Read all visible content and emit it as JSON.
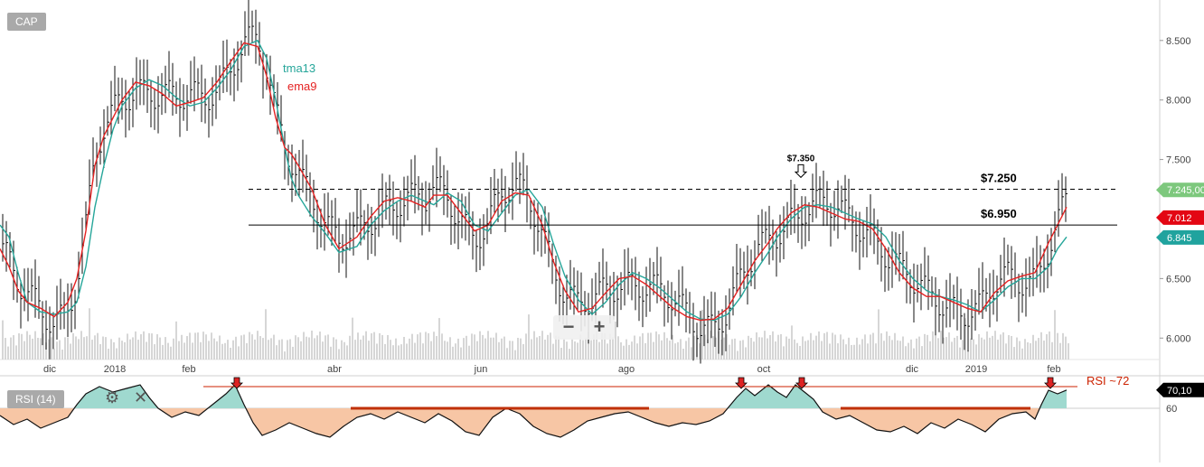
{
  "chart_data": [
    {
      "type": "candlestick",
      "title": "CAP",
      "y_axis": {
        "position": "right",
        "range": [
          5.82,
          8.84
        ],
        "tick_labels": [
          "6.000",
          "6.500",
          "7.000",
          "7.500",
          "8.000",
          "8.500"
        ],
        "tick_values": [
          6.0,
          6.5,
          7.0,
          7.5,
          8.0,
          8.5
        ]
      },
      "x_axis": {
        "tick_labels": [
          "dic",
          "2018",
          "feb",
          "abr",
          "jun",
          "ago",
          "oct",
          "dic",
          "2019",
          "feb"
        ]
      },
      "series": [
        {
          "name": "tma13",
          "color": "#26a69a",
          "points": [
            [
              0,
              6.95
            ],
            [
              10,
              6.85
            ],
            [
              20,
              6.55
            ],
            [
              30,
              6.3
            ],
            [
              45,
              6.22
            ],
            [
              60,
              6.2
            ],
            [
              75,
              6.22
            ],
            [
              85,
              6.3
            ],
            [
              95,
              6.6
            ],
            [
              105,
              7.1
            ],
            [
              115,
              7.45
            ],
            [
              125,
              7.75
            ],
            [
              135,
              7.95
            ],
            [
              150,
              8.1
            ],
            [
              165,
              8.17
            ],
            [
              180,
              8.12
            ],
            [
              195,
              8.02
            ],
            [
              210,
              7.95
            ],
            [
              225,
              7.98
            ],
            [
              240,
              8.1
            ],
            [
              255,
              8.25
            ],
            [
              270,
              8.45
            ],
            [
              285,
              8.5
            ],
            [
              295,
              8.35
            ],
            [
              305,
              8.0
            ],
            [
              315,
              7.6
            ],
            [
              322,
              7.35
            ],
            [
              330,
              7.2
            ],
            [
              345,
              7.02
            ],
            [
              360,
              6.88
            ],
            [
              375,
              6.72
            ],
            [
              395,
              6.77
            ],
            [
              410,
              6.95
            ],
            [
              425,
              7.07
            ],
            [
              440,
              7.15
            ],
            [
              455,
              7.2
            ],
            [
              470,
              7.15
            ],
            [
              480,
              7.12
            ],
            [
              495,
              7.22
            ],
            [
              510,
              7.15
            ],
            [
              525,
              6.95
            ],
            [
              540,
              6.9
            ],
            [
              555,
              7.05
            ],
            [
              570,
              7.2
            ],
            [
              585,
              7.25
            ],
            [
              600,
              7.1
            ],
            [
              612,
              6.8
            ],
            [
              625,
              6.52
            ],
            [
              640,
              6.32
            ],
            [
              655,
              6.2
            ],
            [
              670,
              6.3
            ],
            [
              685,
              6.45
            ],
            [
              700,
              6.55
            ],
            [
              715,
              6.5
            ],
            [
              730,
              6.42
            ],
            [
              745,
              6.32
            ],
            [
              760,
              6.22
            ],
            [
              775,
              6.16
            ],
            [
              790,
              6.15
            ],
            [
              805,
              6.2
            ],
            [
              820,
              6.35
            ],
            [
              835,
              6.55
            ],
            [
              850,
              6.72
            ],
            [
              860,
              6.85
            ],
            [
              875,
              7.0
            ],
            [
              890,
              7.1
            ],
            [
              905,
              7.12
            ],
            [
              920,
              7.1
            ],
            [
              935,
              7.05
            ],
            [
              950,
              7.0
            ],
            [
              965,
              6.96
            ],
            [
              980,
              6.85
            ],
            [
              995,
              6.65
            ],
            [
              1010,
              6.5
            ],
            [
              1025,
              6.4
            ],
            [
              1040,
              6.35
            ],
            [
              1055,
              6.32
            ],
            [
              1070,
              6.28
            ],
            [
              1085,
              6.22
            ],
            [
              1100,
              6.32
            ],
            [
              1115,
              6.43
            ],
            [
              1130,
              6.5
            ],
            [
              1145,
              6.5
            ],
            [
              1160,
              6.6
            ],
            [
              1170,
              6.75
            ],
            [
              1180,
              6.85
            ]
          ]
        },
        {
          "name": "ema9",
          "color": "#e52222",
          "points": [
            [
              0,
              6.75
            ],
            [
              10,
              6.6
            ],
            [
              20,
              6.4
            ],
            [
              30,
              6.3
            ],
            [
              45,
              6.25
            ],
            [
              60,
              6.18
            ],
            [
              75,
              6.3
            ],
            [
              85,
              6.5
            ],
            [
              95,
              6.9
            ],
            [
              105,
              7.45
            ],
            [
              115,
              7.7
            ],
            [
              125,
              7.85
            ],
            [
              135,
              8.0
            ],
            [
              150,
              8.15
            ],
            [
              165,
              8.12
            ],
            [
              180,
              8.05
            ],
            [
              195,
              7.95
            ],
            [
              210,
              7.98
            ],
            [
              225,
              8.02
            ],
            [
              240,
              8.15
            ],
            [
              255,
              8.32
            ],
            [
              270,
              8.48
            ],
            [
              285,
              8.45
            ],
            [
              295,
              8.2
            ],
            [
              305,
              7.85
            ],
            [
              315,
              7.6
            ],
            [
              322,
              7.55
            ],
            [
              330,
              7.45
            ],
            [
              345,
              7.25
            ],
            [
              360,
              6.95
            ],
            [
              375,
              6.75
            ],
            [
              395,
              6.85
            ],
            [
              410,
              7.02
            ],
            [
              425,
              7.15
            ],
            [
              440,
              7.18
            ],
            [
              455,
              7.15
            ],
            [
              470,
              7.1
            ],
            [
              480,
              7.2
            ],
            [
              495,
              7.2
            ],
            [
              510,
              7.05
            ],
            [
              525,
              6.9
            ],
            [
              540,
              6.95
            ],
            [
              555,
              7.15
            ],
            [
              570,
              7.22
            ],
            [
              585,
              7.2
            ],
            [
              600,
              6.95
            ],
            [
              612,
              6.65
            ],
            [
              625,
              6.4
            ],
            [
              640,
              6.22
            ],
            [
              655,
              6.25
            ],
            [
              670,
              6.38
            ],
            [
              685,
              6.5
            ],
            [
              700,
              6.52
            ],
            [
              715,
              6.45
            ],
            [
              730,
              6.35
            ],
            [
              745,
              6.25
            ],
            [
              760,
              6.18
            ],
            [
              775,
              6.15
            ],
            [
              790,
              6.16
            ],
            [
              805,
              6.25
            ],
            [
              820,
              6.45
            ],
            [
              835,
              6.65
            ],
            [
              850,
              6.8
            ],
            [
              860,
              6.92
            ],
            [
              875,
              7.05
            ],
            [
              890,
              7.12
            ],
            [
              905,
              7.1
            ],
            [
              920,
              7.05
            ],
            [
              935,
              7.0
            ],
            [
              950,
              6.98
            ],
            [
              965,
              6.92
            ],
            [
              980,
              6.75
            ],
            [
              995,
              6.55
            ],
            [
              1010,
              6.42
            ],
            [
              1025,
              6.35
            ],
            [
              1040,
              6.35
            ],
            [
              1055,
              6.3
            ],
            [
              1070,
              6.25
            ],
            [
              1085,
              6.22
            ],
            [
              1100,
              6.38
            ],
            [
              1115,
              6.48
            ],
            [
              1130,
              6.52
            ],
            [
              1145,
              6.55
            ],
            [
              1160,
              6.8
            ],
            [
              1170,
              6.95
            ],
            [
              1180,
              7.1
            ]
          ]
        }
      ],
      "horizontal_lines": [
        {
          "label": "$7.250",
          "value": 7.25,
          "style": "dashed",
          "color": "#000000"
        },
        {
          "label": "$6.950",
          "value": 6.95,
          "style": "solid",
          "color": "#000000"
        }
      ],
      "annotations": [
        {
          "label": "$7.350",
          "value": 7.35,
          "type": "arrow-down"
        }
      ],
      "price_badges": [
        {
          "text": "7.245,00",
          "value": 7.245,
          "color": "#7dc87d"
        },
        {
          "text": "7.012",
          "value": 7.012,
          "color": "#e30613"
        },
        {
          "text": "6.845",
          "value": 6.845,
          "color": "#20a39e"
        }
      ],
      "volume": "bars at bottom of price pane",
      "legend_placement": "top-left, near series lines"
    },
    {
      "type": "area",
      "title": "RSI (14)",
      "range": [
        30,
        78
      ],
      "ticks": [
        {
          "label": "60",
          "value": 60
        }
      ],
      "threshold": {
        "label": "RSI ~72",
        "value": 72,
        "color": "#cc2200"
      },
      "current_value": "70,10",
      "colors": {
        "above": "#9fd9cf",
        "below": "#f7c6a5"
      },
      "series": [
        {
          "name": "RSI",
          "points": [
            [
              0,
              56
            ],
            [
              15,
              51
            ],
            [
              30,
              54
            ],
            [
              45,
              49
            ],
            [
              60,
              52
            ],
            [
              75,
              55
            ],
            [
              85,
              62
            ],
            [
              95,
              68
            ],
            [
              110,
              72
            ],
            [
              125,
              69
            ],
            [
              140,
              71
            ],
            [
              155,
              73
            ],
            [
              165,
              66
            ],
            [
              175,
              60
            ],
            [
              190,
              55
            ],
            [
              205,
              58
            ],
            [
              220,
              56
            ],
            [
              235,
              62
            ],
            [
              250,
              68
            ],
            [
              260,
              73
            ],
            [
              270,
              62
            ],
            [
              280,
              52
            ],
            [
              290,
              45
            ],
            [
              305,
              48
            ],
            [
              320,
              52
            ],
            [
              335,
              49
            ],
            [
              350,
              46
            ],
            [
              365,
              44
            ],
            [
              380,
              50
            ],
            [
              395,
              55
            ],
            [
              410,
              57
            ],
            [
              425,
              54
            ],
            [
              440,
              58
            ],
            [
              455,
              55
            ],
            [
              470,
              52
            ],
            [
              485,
              57
            ],
            [
              500,
              53
            ],
            [
              515,
              47
            ],
            [
              530,
              45
            ],
            [
              545,
              55
            ],
            [
              560,
              60
            ],
            [
              575,
              57
            ],
            [
              590,
              50
            ],
            [
              605,
              46
            ],
            [
              620,
              44
            ],
            [
              635,
              48
            ],
            [
              650,
              53
            ],
            [
              665,
              55
            ],
            [
              680,
              57
            ],
            [
              695,
              58
            ],
            [
              710,
              55
            ],
            [
              725,
              52
            ],
            [
              740,
              50
            ],
            [
              755,
              52
            ],
            [
              770,
              51
            ],
            [
              785,
              53
            ],
            [
              800,
              57
            ],
            [
              815,
              66
            ],
            [
              825,
              71
            ],
            [
              835,
              67
            ],
            [
              850,
              73
            ],
            [
              860,
              69
            ],
            [
              870,
              66
            ],
            [
              880,
              73
            ],
            [
              890,
              69
            ],
            [
              900,
              65
            ],
            [
              910,
              58
            ],
            [
              925,
              54
            ],
            [
              940,
              56
            ],
            [
              955,
              52
            ],
            [
              970,
              48
            ],
            [
              985,
              47
            ],
            [
              1000,
              50
            ],
            [
              1015,
              46
            ],
            [
              1030,
              52
            ],
            [
              1045,
              49
            ],
            [
              1060,
              54
            ],
            [
              1075,
              51
            ],
            [
              1090,
              47
            ],
            [
              1105,
              54
            ],
            [
              1120,
              57
            ],
            [
              1135,
              58
            ],
            [
              1145,
              54
            ],
            [
              1152,
              62
            ],
            [
              1160,
              70
            ],
            [
              1170,
              68
            ],
            [
              1180,
              70.1
            ]
          ]
        }
      ],
      "resistance_arrows": [
        262,
        820,
        887,
        1162
      ],
      "support_segments": [
        [
          388,
          718
        ],
        [
          930,
          1140
        ]
      ]
    }
  ],
  "toolbar": {
    "zoom_out": "−",
    "zoom_in": "+"
  },
  "rsi_icons": [
    "gear-icon",
    "close-icon"
  ]
}
